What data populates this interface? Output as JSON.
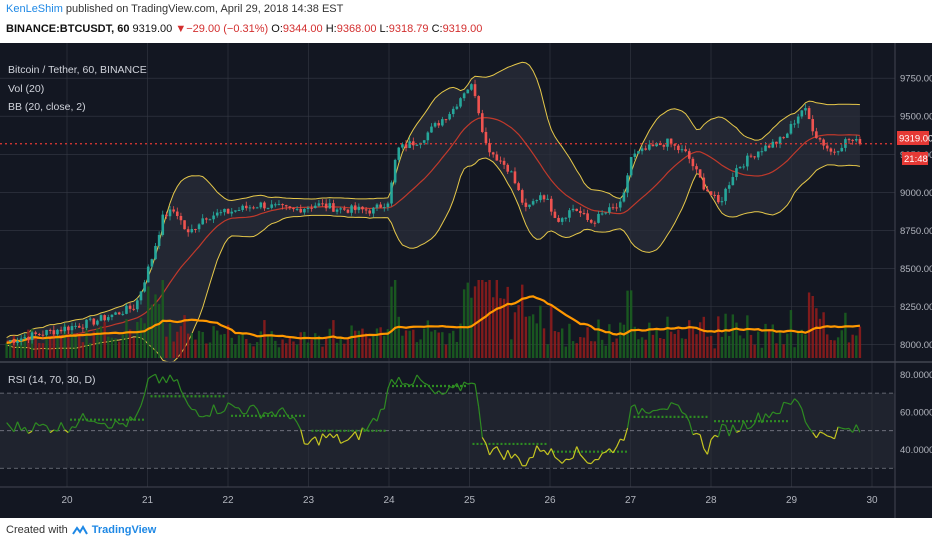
{
  "header": {
    "author": "KenLeShim",
    "published_text": " published on TradingView.com, April 29, 2018 14:38 EST",
    "symbol": "BINANCE:BTCUSDT, 60",
    "last": "9319.00",
    "change": "−29.00 (−0.31%)",
    "o_label": "O:",
    "o": "9344.00",
    "h_label": "H:",
    "h": "9368.00",
    "l_label": "L:",
    "l": "9318.79",
    "c_label": "C:",
    "c": "9319.00"
  },
  "legend": {
    "line1": "Bitcoin / Tether, 60, BINANCE",
    "line2": "Vol (20)",
    "line3": "BB (20, close, 2)",
    "rsi": "RSI (14, 70, 30, D)"
  },
  "price_tag": {
    "value": "9319.00",
    "countdown": "21:48"
  },
  "footer": {
    "created_with": "Created with",
    "brand": "TradingView"
  },
  "colors": {
    "background": "#131722",
    "grid": "#363a45",
    "up": "#26a69a",
    "down": "#ef5350",
    "bb_band": "#e6c84a",
    "bb_basis": "#c0392b",
    "vol_ma": "#ff9800",
    "rsi_above_50": "#2e8b22",
    "rsi_below_50": "#c6c621",
    "price_line": "#e53935"
  },
  "chart_data": {
    "type": "candlestick",
    "symbol": "BTCUSDT",
    "timeframe": "60",
    "x_ticks": [
      "20",
      "21",
      "22",
      "23",
      "24",
      "25",
      "26",
      "27",
      "28",
      "29",
      "30"
    ],
    "price_axis": {
      "ticks": [
        "9750.00",
        "9500.00",
        "9250.00",
        "9000.00",
        "8750.00",
        "8500.00",
        "8250.00",
        "8000.00"
      ],
      "range": [
        7950,
        9850
      ]
    },
    "rsi_axis": {
      "ticks": [
        "80.0000",
        "60.0000",
        "40.0000"
      ],
      "range": [
        20,
        85
      ],
      "bands": [
        70,
        30
      ],
      "midline": 50
    },
    "close_keypoints": [
      [
        0,
        8110
      ],
      [
        0.3,
        8145
      ],
      [
        0.6,
        8200
      ],
      [
        0.85,
        8250
      ],
      [
        1.05,
        8560
      ],
      [
        1.2,
        8850
      ],
      [
        1.35,
        8880
      ],
      [
        1.5,
        8720
      ],
      [
        1.7,
        8840
      ],
      [
        2.0,
        8870
      ],
      [
        2.4,
        8920
      ],
      [
        2.8,
        8880
      ],
      [
        3.1,
        8920
      ],
      [
        3.4,
        8890
      ],
      [
        3.8,
        8880
      ],
      [
        4.0,
        8950
      ],
      [
        4.1,
        9280
      ],
      [
        4.4,
        9350
      ],
      [
        4.6,
        9450
      ],
      [
        4.8,
        9550
      ],
      [
        4.95,
        9680
      ],
      [
        5.05,
        9700
      ],
      [
        5.2,
        9320
      ],
      [
        5.3,
        9250
      ],
      [
        5.5,
        9150
      ],
      [
        5.7,
        8880
      ],
      [
        5.9,
        9000
      ],
      [
        6.1,
        8820
      ],
      [
        6.3,
        8900
      ],
      [
        6.5,
        8800
      ],
      [
        6.7,
        8870
      ],
      [
        6.9,
        8920
      ],
      [
        7.0,
        9230
      ],
      [
        7.2,
        9280
      ],
      [
        7.45,
        9330
      ],
      [
        7.7,
        9250
      ],
      [
        7.9,
        9050
      ],
      [
        8.1,
        8920
      ],
      [
        8.3,
        9150
      ],
      [
        8.6,
        9280
      ],
      [
        8.9,
        9350
      ],
      [
        9.05,
        9480
      ],
      [
        9.15,
        9560
      ],
      [
        9.3,
        9380
      ],
      [
        9.5,
        9260
      ],
      [
        9.7,
        9350
      ],
      [
        9.85,
        9319
      ]
    ],
    "rsi_keypoints": [
      [
        0,
        52
      ],
      [
        0.3,
        58
      ],
      [
        0.6,
        53
      ],
      [
        0.85,
        55
      ],
      [
        0.95,
        65
      ],
      [
        1.05,
        81
      ],
      [
        1.2,
        75
      ],
      [
        1.35,
        78
      ],
      [
        1.5,
        62
      ],
      [
        1.7,
        60
      ],
      [
        2.0,
        63
      ],
      [
        2.4,
        60
      ],
      [
        2.8,
        59
      ],
      [
        2.95,
        42
      ],
      [
        3.2,
        47
      ],
      [
        3.5,
        44
      ],
      [
        3.75,
        52
      ],
      [
        3.9,
        60
      ],
      [
        4.05,
        78
      ],
      [
        4.4,
        76
      ],
      [
        4.6,
        68
      ],
      [
        4.85,
        72
      ],
      [
        5.05,
        79
      ],
      [
        5.15,
        50
      ],
      [
        5.25,
        40
      ],
      [
        5.5,
        37
      ],
      [
        5.7,
        33
      ],
      [
        5.9,
        42
      ],
      [
        6.1,
        35
      ],
      [
        6.3,
        39
      ],
      [
        6.5,
        34
      ],
      [
        6.7,
        38
      ],
      [
        6.9,
        45
      ],
      [
        7.0,
        60
      ],
      [
        7.2,
        62
      ],
      [
        7.4,
        64
      ],
      [
        7.6,
        60
      ],
      [
        7.8,
        50
      ],
      [
        7.95,
        40
      ],
      [
        8.1,
        50
      ],
      [
        8.3,
        51
      ],
      [
        8.5,
        55
      ],
      [
        8.7,
        59
      ],
      [
        8.9,
        62
      ],
      [
        9.1,
        67
      ],
      [
        9.2,
        52
      ],
      [
        9.4,
        47
      ],
      [
        9.6,
        50
      ],
      [
        9.85,
        50
      ]
    ]
  }
}
